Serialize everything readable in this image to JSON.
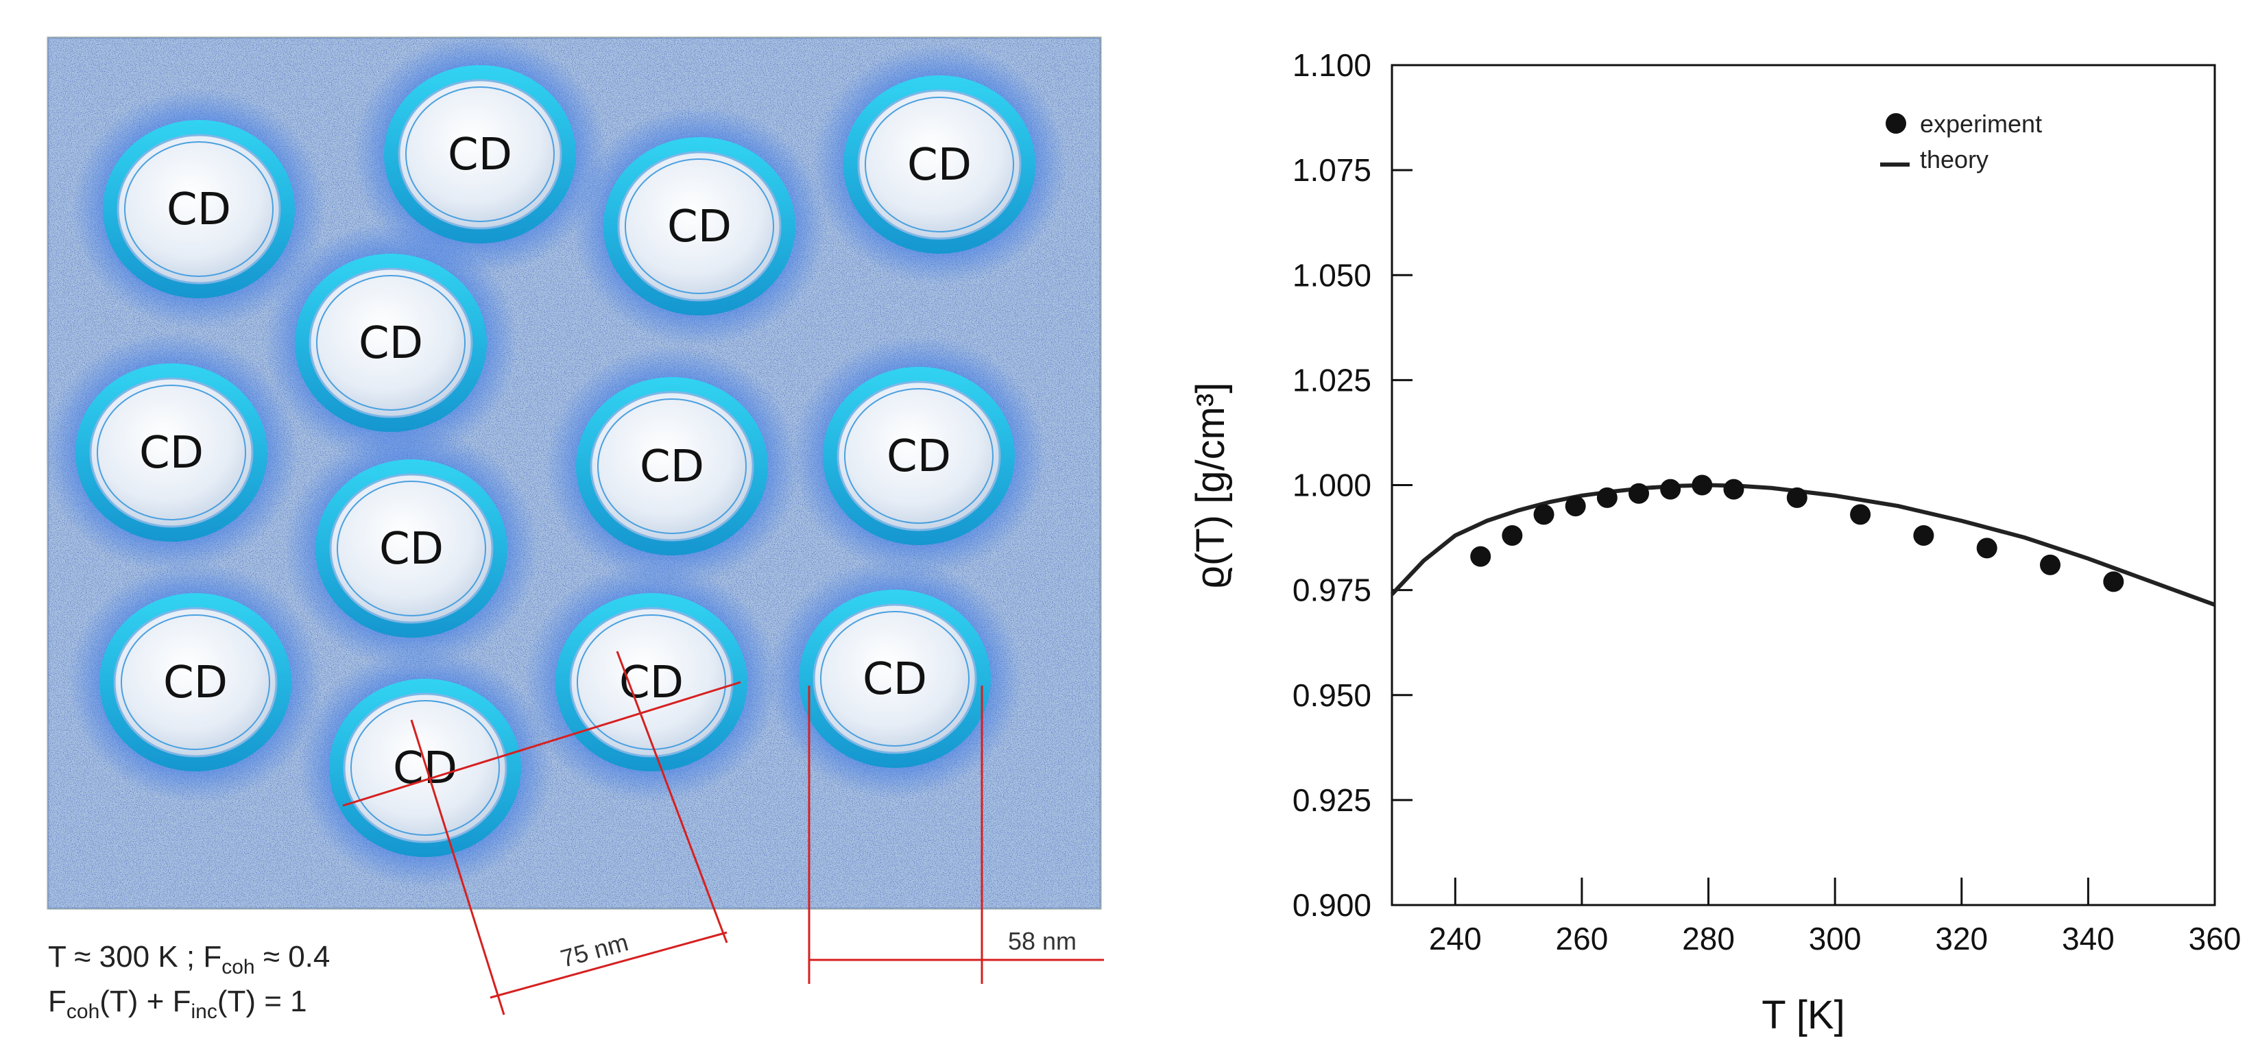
{
  "schematic": {
    "domain_label": "CD",
    "caption_line1": {
      "t_part": "T ≈ 300 K ; F",
      "coh_sub": "coh",
      "value_part": " ≈ 0.4"
    },
    "caption_line2": {
      "f1": "F",
      "coh_sub": "coh",
      "mid": "(T) + F",
      "inc_sub": "inc",
      "end": "(T) = 1"
    },
    "dimension_labels": [
      "75 nm",
      "58 nm"
    ],
    "colors": {
      "background": "#4a6fd0",
      "domain_ring": "#22c0e8",
      "dimension_lines": "#d62020"
    }
  },
  "chart_data": {
    "type": "scatter",
    "xlabel": "T [K]",
    "ylabel": "ϱ(T) [g/cm³]",
    "xlim": [
      230,
      360
    ],
    "ylim": [
      0.9,
      1.1
    ],
    "x_ticks": [
      240,
      260,
      280,
      300,
      320,
      340,
      360
    ],
    "y_ticks": [
      0.9,
      0.925,
      0.95,
      0.975,
      1.0,
      1.025,
      1.05,
      1.075,
      1.1
    ],
    "x_tick_labels": [
      "240",
      "260",
      "280",
      "300",
      "320",
      "340",
      "360"
    ],
    "y_tick_labels": [
      "0.900",
      "0.925",
      "0.950",
      "0.975",
      "1.000",
      "1.025",
      "1.050",
      "1.075",
      "1.100"
    ],
    "legend": {
      "position": "top-right",
      "entries": [
        "experiment",
        "theory"
      ]
    },
    "series": [
      {
        "name": "experiment",
        "kind": "points",
        "x": [
          244,
          249,
          254,
          259,
          264,
          269,
          274,
          279,
          284,
          294,
          304,
          314,
          324,
          334,
          344
        ],
        "y": [
          0.983,
          0.988,
          0.993,
          0.995,
          0.997,
          0.998,
          0.999,
          1.0,
          0.999,
          0.997,
          0.993,
          0.988,
          0.985,
          0.981,
          0.977
        ]
      },
      {
        "name": "theory",
        "kind": "line",
        "x": [
          230,
          235,
          240,
          245,
          250,
          255,
          260,
          265,
          270,
          275,
          280,
          285,
          290,
          300,
          310,
          320,
          330,
          340,
          350,
          360
        ],
        "y": [
          0.974,
          0.982,
          0.988,
          0.9915,
          0.994,
          0.996,
          0.9975,
          0.9985,
          0.9993,
          0.9998,
          1.0,
          0.9998,
          0.9993,
          0.9975,
          0.995,
          0.9915,
          0.9875,
          0.9825,
          0.977,
          0.9715
        ]
      }
    ],
    "colors": {
      "points": "#111111",
      "line": "#222222",
      "axes": "#111111"
    }
  }
}
